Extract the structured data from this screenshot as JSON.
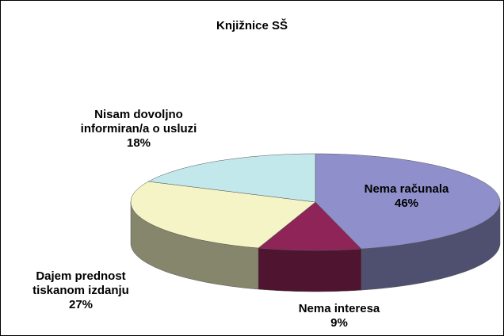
{
  "chart_data": {
    "type": "pie3d",
    "title": "Knjižnice SŠ",
    "categories": [
      "Nema računala",
      "Nema interesa",
      "Dajem prednost tiskanom izdanju",
      "Nisam dovoljno informiran/a o usluzi"
    ],
    "values": [
      46,
      9,
      27,
      18
    ],
    "value_labels": [
      "46%",
      "9%",
      "27%",
      "18%"
    ],
    "colors": [
      "#8f8fcc",
      "#8e2458",
      "#f4f4c6",
      "#c2e8ec"
    ]
  }
}
